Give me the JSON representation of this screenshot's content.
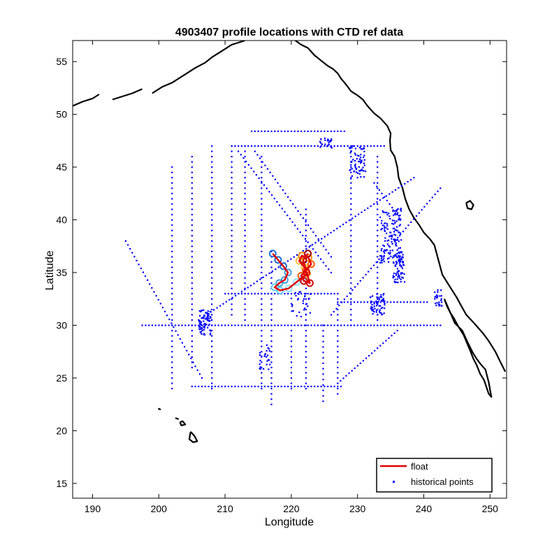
{
  "chart_data": {
    "type": "scatter",
    "title": "4903407 profile locations with CTD ref data",
    "xlabel": "Longitude",
    "ylabel": "Latitude",
    "xlim": [
      187,
      252.5
    ],
    "ylim": [
      13.6,
      57
    ],
    "xticks": [
      190,
      200,
      210,
      220,
      230,
      240,
      250
    ],
    "yticks": [
      15,
      20,
      25,
      30,
      35,
      40,
      45,
      50,
      55
    ],
    "legend": {
      "placement": "bottom-right",
      "entries": [
        {
          "label": "float",
          "color": "#e00000",
          "style": "line"
        },
        {
          "label": "historical points",
          "color": "#0000ff",
          "style": "marker"
        }
      ]
    },
    "series": [
      {
        "name": "float",
        "color": "#e00000",
        "x": [
          217.2,
          218.0,
          218.8,
          219.5,
          219.0,
          218.2,
          217.5,
          218.3,
          219.6,
          220.8,
          221.8,
          222.4,
          222.0,
          221.2,
          221.6,
          222.6,
          223.0,
          222.2,
          221.5,
          221.9,
          222.8,
          222.3,
          221.8,
          222.5
        ],
        "y": [
          36.8,
          36.2,
          35.6,
          35.0,
          34.3,
          34.0,
          33.6,
          33.3,
          33.5,
          34.1,
          34.6,
          34.9,
          35.5,
          36.1,
          36.6,
          36.4,
          35.8,
          35.2,
          34.7,
          34.2,
          34.0,
          35.0,
          36.2,
          36.8
        ]
      },
      {
        "name": "historical points",
        "color": "#0000ff",
        "tracks": [
          {
            "x": [
              197.5,
              242.5
            ],
            "y": [
              30.0,
              30.0
            ]
          },
          {
            "x": [
              205.0,
              227.5
            ],
            "y": [
              24.2,
              24.2
            ]
          },
          {
            "x": [
              210.0,
              227.0
            ],
            "y": [
              33.0,
              33.0
            ]
          },
          {
            "x": [
              227.0,
              240.5
            ],
            "y": [
              32.2,
              32.2
            ]
          },
          {
            "x": [
              208.0,
              208.0
            ],
            "y": [
              24.0,
              47.0
            ]
          },
          {
            "x": [
              202.0,
              202.0
            ],
            "y": [
              24.0,
              45.0
            ]
          },
          {
            "x": [
              205.0,
              205.0
            ],
            "y": [
              26.0,
              46.0
            ]
          },
          {
            "x": [
              211.0,
              211.0
            ],
            "y": [
              31.0,
              47.0
            ]
          },
          {
            "x": [
              217.0,
              217.0
            ],
            "y": [
              22.5,
              37.0
            ]
          },
          {
            "x": [
              222.2,
              222.2
            ],
            "y": [
              24.0,
              41.0
            ]
          },
          {
            "x": [
              227.0,
              227.0
            ],
            "y": [
              23.5,
              32.5
            ]
          },
          {
            "x": [
              213.0,
              213.0
            ],
            "y": [
              30.0,
              47.0
            ]
          },
          {
            "x": [
              215.5,
              215.5
            ],
            "y": [
              24.0,
              46.0
            ]
          },
          {
            "x": [
              220.0,
              220.0
            ],
            "y": [
              24.0,
              30.0
            ]
          },
          {
            "x": [
              224.8,
              224.8
            ],
            "y": [
              22.8,
              30.0
            ]
          },
          {
            "x": [
              229.0,
              229.0
            ],
            "y": [
              30.0,
              46.5
            ]
          },
          {
            "x": [
              233.0,
              233.0
            ],
            "y": [
              30.0,
              46.0
            ]
          },
          {
            "x": [
              206.0,
              238.5
            ],
            "y": [
              30.5,
              44.0
            ]
          },
          {
            "x": [
              214.5,
              226.0
            ],
            "y": [
              46.5,
              36.5
            ]
          },
          {
            "x": [
              212.0,
              226.0
            ],
            "y": [
              46.5,
              35.0
            ]
          },
          {
            "x": [
              195.0,
              206.5
            ],
            "y": [
              38.0,
              25.0
            ]
          },
          {
            "x": [
              227.0,
              236.0
            ],
            "y": [
              24.5,
              29.5
            ]
          },
          {
            "x": [
              211.0,
              234.0
            ],
            "y": [
              47.0,
              47.0
            ]
          },
          {
            "x": [
              214.0,
              228.0
            ],
            "y": [
              48.4,
              48.4
            ]
          },
          {
            "x": [
              226.0,
              242.5
            ],
            "y": [
              31.0,
              43.0
            ]
          },
          {
            "x": [
              232.5,
              236.0
            ],
            "y": [
              43.5,
              40.5
            ]
          }
        ],
        "clusters": [
          {
            "x": 230.0,
            "y": 45.5,
            "rx": 1.2,
            "ry": 1.6,
            "n": 70
          },
          {
            "x": 235.0,
            "y": 38.5,
            "rx": 1.6,
            "ry": 2.6,
            "n": 150
          },
          {
            "x": 236.2,
            "y": 35.5,
            "rx": 0.9,
            "ry": 1.5,
            "n": 70
          },
          {
            "x": 233.0,
            "y": 32.0,
            "rx": 1.1,
            "ry": 1.0,
            "n": 60
          },
          {
            "x": 207.0,
            "y": 30.3,
            "rx": 0.9,
            "ry": 1.2,
            "n": 80
          },
          {
            "x": 216.0,
            "y": 27.0,
            "rx": 0.8,
            "ry": 1.2,
            "n": 25
          },
          {
            "x": 242.2,
            "y": 32.6,
            "rx": 0.6,
            "ry": 0.8,
            "n": 25
          },
          {
            "x": 225.2,
            "y": 47.3,
            "rx": 1.0,
            "ry": 0.5,
            "n": 25
          },
          {
            "x": 221.5,
            "y": 32.0,
            "rx": 1.5,
            "ry": 1.2,
            "n": 30
          }
        ]
      }
    ],
    "coastline": [
      {
        "x": [
          220.6,
          221.5,
          222.5,
          223.5,
          224.5,
          225.5,
          226.3,
          227.0,
          227.5,
          228.3,
          229.0,
          230.0,
          230.8,
          231.5,
          232.5,
          233.5,
          234.5,
          235.0,
          234.9,
          235.0,
          235.6,
          236.0,
          236.2,
          236.8,
          237.2,
          237.8,
          238.5,
          239.3,
          240.0,
          240.9,
          241.6,
          242.8,
          244.0,
          245.0,
          245.6,
          246.4,
          247.6,
          249.0,
          249.8,
          250.8,
          251.5,
          252.3
        ],
        "y": [
          57.0,
          56.6,
          56.3,
          55.6,
          55.1,
          54.6,
          54.3,
          53.9,
          53.4,
          52.8,
          52.2,
          51.8,
          51.4,
          50.8,
          50.1,
          49.6,
          48.9,
          48.2,
          47.5,
          46.6,
          46.0,
          45.0,
          44.0,
          43.0,
          42.0,
          41.0,
          40.2,
          39.5,
          38.8,
          38.2,
          37.6,
          34.8,
          33.6,
          32.6,
          31.9,
          31.0,
          30.2,
          29.2,
          28.5,
          27.5,
          26.6,
          25.6
        ]
      },
      {
        "x": [
          243.1,
          243.8,
          244.7,
          245.8,
          246.6,
          247.4,
          248.0,
          248.6,
          249.3,
          249.8,
          250.2,
          249.8,
          249.1,
          248.5,
          248.0,
          247.5,
          247.0,
          246.6,
          246.0,
          245.3,
          244.6,
          244.0,
          243.5,
          243.1
        ],
        "y": [
          32.5,
          31.5,
          30.2,
          29.5,
          28.4,
          27.4,
          26.8,
          26.3,
          25.8,
          24.6,
          23.2,
          23.5,
          24.8,
          25.4,
          26.2,
          26.8,
          27.6,
          28.2,
          29.1,
          29.8,
          30.6,
          31.2,
          31.8,
          32.5
        ]
      },
      {
        "x": [
          199.0,
          200.5,
          202.0,
          203.0,
          204.0,
          205.5,
          207.0,
          208.0,
          209.0,
          210.0,
          211.0,
          212.5,
          213.0
        ],
        "y": [
          52.0,
          52.6,
          53.0,
          53.4,
          53.8,
          54.4,
          54.9,
          55.4,
          55.8,
          56.2,
          56.6,
          56.9,
          57.0
        ]
      },
      {
        "x": [
          193.0,
          194.5,
          196.0,
          197.5
        ],
        "y": [
          51.4,
          51.7,
          52.0,
          52.4
        ]
      },
      {
        "x": [
          187.0,
          188.5,
          190.0,
          191.0
        ],
        "y": [
          50.8,
          51.2,
          51.5,
          51.9
        ]
      },
      {
        "x": [
          204.8,
          205.4,
          205.8,
          205.2,
          204.6,
          204.8
        ],
        "y": [
          19.9,
          19.5,
          19.0,
          18.9,
          19.2,
          19.9
        ]
      },
      {
        "x": [
          203.2,
          203.6,
          204.0,
          203.4,
          203.2
        ],
        "y": [
          20.8,
          20.9,
          20.6,
          20.5,
          20.8
        ]
      },
      {
        "x": [
          202.5,
          203.0
        ],
        "y": [
          21.2,
          21.1
        ]
      },
      {
        "x": [
          199.9,
          200.3
        ],
        "y": [
          22.1,
          22.0
        ]
      },
      {
        "x": [
          246.4,
          247.0,
          247.5,
          247.2,
          246.6,
          246.4
        ],
        "y": [
          41.6,
          41.8,
          41.4,
          41.0,
          41.1,
          41.6
        ]
      }
    ]
  }
}
